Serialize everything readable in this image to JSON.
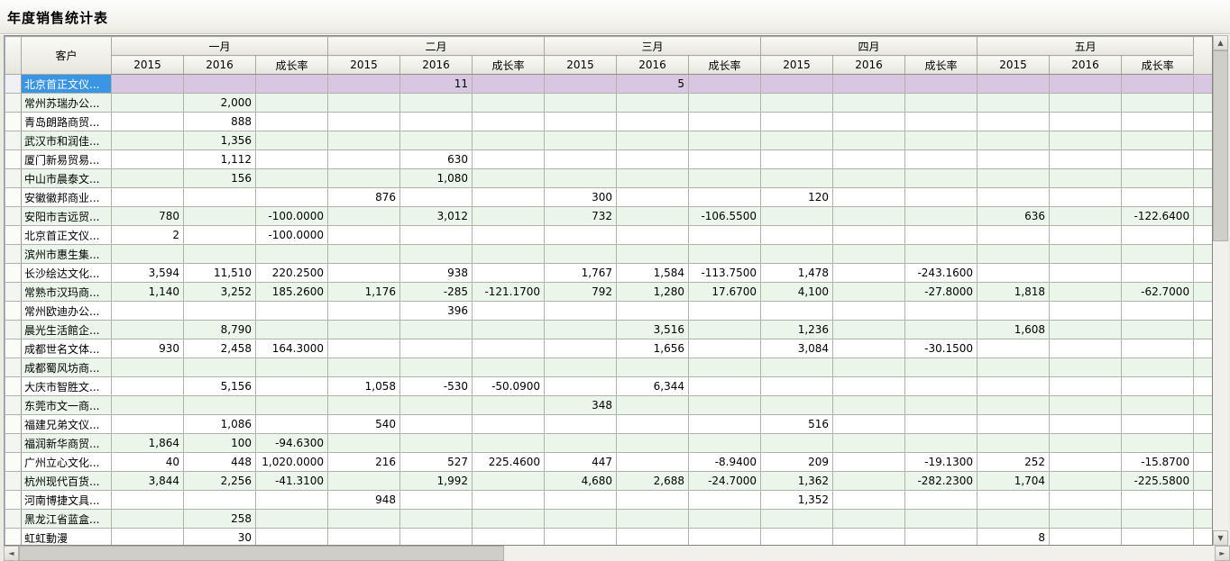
{
  "title": "年度销售统计表",
  "icons": {
    "scroll_up": "▲",
    "scroll_down": "▼",
    "scroll_left": "◄",
    "scroll_right": "►"
  },
  "colors": {
    "selected_cell": "#3a95e4",
    "selected_row": "#d8c7e3",
    "alt_row": "#e9f6e9",
    "header_bg": "#efeee7"
  },
  "grid": {
    "customer_header": "客户",
    "months": [
      "一月",
      "二月",
      "三月",
      "四月",
      "五月"
    ],
    "sub_headers": [
      "2015",
      "2016",
      "成长率"
    ],
    "rows": [
      {
        "name": "北京首正文仪...",
        "selected": true,
        "cells": [
          "",
          "",
          "",
          "",
          "11",
          "",
          "",
          "5",
          "",
          "",
          "",
          "",
          "",
          "",
          ""
        ]
      },
      {
        "name": "常州苏瑞办公...",
        "cells": [
          "",
          "2,000",
          "",
          "",
          "",
          "",
          "",
          "",
          "",
          "",
          "",
          "",
          "",
          "",
          ""
        ]
      },
      {
        "name": "青岛朗路商贸...",
        "cells": [
          "",
          "888",
          "",
          "",
          "",
          "",
          "",
          "",
          "",
          "",
          "",
          "",
          "",
          "",
          ""
        ]
      },
      {
        "name": "武汉市和润佳...",
        "cells": [
          "",
          "1,356",
          "",
          "",
          "",
          "",
          "",
          "",
          "",
          "",
          "",
          "",
          "",
          "",
          ""
        ]
      },
      {
        "name": "厦门新易贸易...",
        "cells": [
          "",
          "1,112",
          "",
          "",
          "630",
          "",
          "",
          "",
          "",
          "",
          "",
          "",
          "",
          "",
          ""
        ]
      },
      {
        "name": "中山市晨泰文...",
        "cells": [
          "",
          "156",
          "",
          "",
          "1,080",
          "",
          "",
          "",
          "",
          "",
          "",
          "",
          "",
          "",
          ""
        ]
      },
      {
        "name": "安徽徽邦商业...",
        "cells": [
          "",
          "",
          "",
          "876",
          "",
          "",
          "300",
          "",
          "",
          "120",
          "",
          "",
          "",
          "",
          ""
        ]
      },
      {
        "name": "安阳市吉远贸...",
        "cells": [
          "780",
          "",
          "-100.0000",
          "",
          "3,012",
          "",
          "732",
          "",
          "-106.5500",
          "",
          "",
          "",
          "636",
          "",
          "-122.6400"
        ]
      },
      {
        "name": "北京首正文仪...",
        "cells": [
          "2",
          "",
          "-100.0000",
          "",
          "",
          "",
          "",
          "",
          "",
          "",
          "",
          "",
          "",
          "",
          ""
        ]
      },
      {
        "name": "滨州市惠生集...",
        "cells": [
          "",
          "",
          "",
          "",
          "",
          "",
          "",
          "",
          "",
          "",
          "",
          "",
          "",
          "",
          ""
        ]
      },
      {
        "name": "长沙绘达文化...",
        "cells": [
          "3,594",
          "11,510",
          "220.2500",
          "",
          "938",
          "",
          "1,767",
          "1,584",
          "-113.7500",
          "1,478",
          "",
          "-243.1600",
          "",
          "",
          ""
        ]
      },
      {
        "name": "常熟市汉玛商...",
        "cells": [
          "1,140",
          "3,252",
          "185.2600",
          "1,176",
          "-285",
          "-121.1700",
          "792",
          "1,280",
          "17.6700",
          "4,100",
          "",
          "-27.8000",
          "1,818",
          "",
          "-62.7000"
        ]
      },
      {
        "name": "常州欧迪办公...",
        "cells": [
          "",
          "",
          "",
          "",
          "396",
          "",
          "",
          "",
          "",
          "",
          "",
          "",
          "",
          "",
          ""
        ]
      },
      {
        "name": "晨光生活館企...",
        "cells": [
          "",
          "8,790",
          "",
          "",
          "",
          "",
          "",
          "3,516",
          "",
          "1,236",
          "",
          "",
          "1,608",
          "",
          ""
        ]
      },
      {
        "name": "成都世名文体...",
        "cells": [
          "930",
          "2,458",
          "164.3000",
          "",
          "",
          "",
          "",
          "1,656",
          "",
          "3,084",
          "",
          "-30.1500",
          "",
          "",
          ""
        ]
      },
      {
        "name": "成都蜀风坊商...",
        "cells": [
          "",
          "",
          "",
          "",
          "",
          "",
          "",
          "",
          "",
          "",
          "",
          "",
          "",
          "",
          ""
        ]
      },
      {
        "name": "大庆市智胜文...",
        "cells": [
          "",
          "5,156",
          "",
          "1,058",
          "-530",
          "-50.0900",
          "",
          "6,344",
          "",
          "",
          "",
          "",
          "",
          "",
          ""
        ]
      },
      {
        "name": "东莞市文一商...",
        "cells": [
          "",
          "",
          "",
          "",
          "",
          "",
          "348",
          "",
          "",
          "",
          "",
          "",
          "",
          "",
          ""
        ]
      },
      {
        "name": "福建兄弟文仪...",
        "cells": [
          "",
          "1,086",
          "",
          "540",
          "",
          "",
          "",
          "",
          "",
          "516",
          "",
          "",
          "",
          "",
          ""
        ]
      },
      {
        "name": "福润新华商贸...",
        "cells": [
          "1,864",
          "100",
          "-94.6300",
          "",
          "",
          "",
          "",
          "",
          "",
          "",
          "",
          "",
          "",
          "",
          ""
        ]
      },
      {
        "name": "广州立心文化...",
        "cells": [
          "40",
          "448",
          "1,020.0000",
          "216",
          "527",
          "225.4600",
          "447",
          "",
          "-8.9400",
          "209",
          "",
          "-19.1300",
          "252",
          "",
          "-15.8700"
        ]
      },
      {
        "name": "杭州现代百货...",
        "cells": [
          "3,844",
          "2,256",
          "-41.3100",
          "",
          "1,992",
          "",
          "4,680",
          "2,688",
          "-24.7000",
          "1,362",
          "",
          "-282.2300",
          "1,704",
          "",
          "-225.5800"
        ]
      },
      {
        "name": "河南博捷文具...",
        "cells": [
          "",
          "",
          "",
          "948",
          "",
          "",
          "",
          "",
          "",
          "1,352",
          "",
          "",
          "",
          "",
          ""
        ]
      },
      {
        "name": "黑龙江省蓝盒...",
        "cells": [
          "",
          "258",
          "",
          "",
          "",
          "",
          "",
          "",
          "",
          "",
          "",
          "",
          "",
          "",
          ""
        ]
      },
      {
        "name": "虹虹動漫",
        "cells": [
          "",
          "30",
          "",
          "",
          "",
          "",
          "",
          "",
          "",
          "",
          "",
          "",
          "8",
          "",
          ""
        ]
      }
    ]
  }
}
